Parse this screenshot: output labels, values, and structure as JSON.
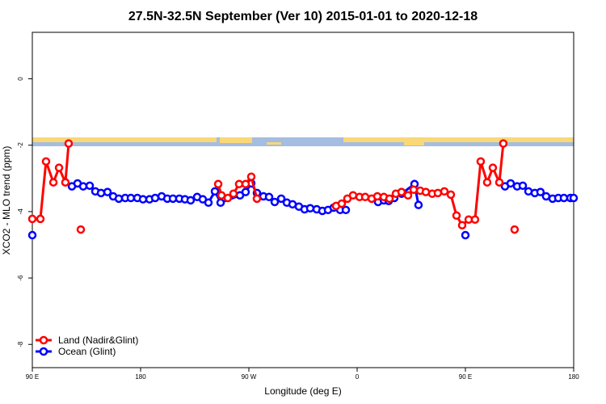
{
  "chart_data": {
    "type": "line",
    "title": "27.5N-32.5N September (Ver 10)   2015-01-01 to 2020-12-18",
    "x_label": "Longitude (deg E)",
    "y_label": "XCO2 - MLO trend (ppm)",
    "xlim": [
      90,
      540
    ],
    "xticks": [
      {
        "value": 90,
        "label": "90 E"
      },
      180,
      {
        "value": 270,
        "label": "90 W"
      },
      {
        "value": 360,
        "label": "0"
      },
      {
        "value": 450,
        "label": "90 E"
      },
      {
        "value": 540,
        "label": "180"
      }
    ],
    "ylim": [
      -8.7,
      1.4
    ],
    "yticks": [
      0,
      -2,
      -4,
      -6,
      -8
    ],
    "legend": "bottomleft",
    "series": [
      {
        "name": "Land (Nadir&Glint)",
        "color": "#ff0000",
        "x": [
          90,
          96.7,
          101.4,
          107.5,
          112.2,
          117.5,
          120.2,
          null,
          130.3,
          null,
          244.5,
          247.2,
          252.5,
          257.2,
          261.9,
          267.3,
          272,
          276.7,
          null,
          342.5,
          347.2,
          351.9,
          356.6,
          362,
          366.7,
          372.1,
          376.8,
          382.2,
          386.9,
          392.2,
          396.9,
          402.3,
          407,
          412.4,
          417.1,
          422.4,
          427.1,
          432.5,
          437.9,
          442.6,
          447.3,
          452.7,
          458,
          462.7,
          468.1,
          472.8,
          478.2,
          481.5,
          null,
          490.9
        ],
        "values": [
          -4.22,
          -4.22,
          -2.49,
          -3.12,
          -2.68,
          -3.12,
          -1.95,
          null,
          -4.54,
          null,
          -3.17,
          -3.51,
          -3.59,
          -3.46,
          -3.17,
          -3.17,
          -2.95,
          -3.61,
          null,
          -3.83,
          -3.76,
          -3.61,
          -3.51,
          -3.56,
          -3.56,
          -3.61,
          -3.54,
          -3.56,
          -3.61,
          -3.46,
          -3.41,
          -3.51,
          -3.34,
          -3.37,
          -3.41,
          -3.46,
          -3.44,
          -3.39,
          -3.49,
          -4.12,
          -4.41,
          -4.24,
          -4.24,
          -2.49,
          -3.12,
          -2.68,
          -3.12,
          -1.95,
          null,
          -4.54
        ]
      },
      {
        "name": "Ocean (Glint)",
        "color": "#0000ff",
        "x": [
          90,
          null,
          122.9,
          127.6,
          132.3,
          137.7,
          142.4,
          147.1,
          152.5,
          157.2,
          161.9,
          167.2,
          171.9,
          177.3,
          182,
          187.4,
          192.1,
          197.5,
          202.2,
          206.9,
          212.2,
          216.9,
          221.6,
          227,
          231.7,
          236.4,
          241.8,
          246.5,
          262.6,
          267.3,
          272,
          276.7,
          282.1,
          286.8,
          291.5,
          296.9,
          301.6,
          306.3,
          311.6,
          316.3,
          321,
          326.4,
          331.1,
          335.8,
          340.5,
          345.9,
          350.6,
          null,
          377.4,
          382.2,
          386.2,
          390.9,
          396.9,
          407.7,
          411,
          null,
          450,
          null,
          482.9,
          487.6,
          493,
          497.7,
          502.4,
          507.7,
          512.4,
          517.1,
          522.5,
          527.2,
          531.9,
          537.3,
          540
        ],
        "values": [
          -4.71,
          null,
          -3.24,
          -3.15,
          -3.24,
          -3.22,
          -3.39,
          -3.44,
          -3.41,
          -3.54,
          -3.61,
          -3.59,
          -3.59,
          -3.59,
          -3.63,
          -3.63,
          -3.59,
          -3.54,
          -3.61,
          -3.61,
          -3.61,
          -3.63,
          -3.66,
          -3.56,
          -3.63,
          -3.73,
          -3.39,
          -3.73,
          -3.51,
          -3.41,
          -3.15,
          -3.44,
          -3.54,
          -3.56,
          -3.71,
          -3.61,
          -3.73,
          -3.78,
          -3.85,
          -3.93,
          -3.9,
          -3.93,
          -3.98,
          -3.95,
          -3.88,
          -3.95,
          -3.95,
          null,
          -3.71,
          -3.66,
          -3.68,
          -3.59,
          -3.46,
          -3.17,
          -3.8,
          null,
          -4.71,
          null,
          -3.24,
          -3.15,
          -3.24,
          -3.22,
          -3.39,
          -3.44,
          -3.41,
          -3.54,
          -3.61,
          -3.59,
          -3.59,
          -3.59,
          -3.59
        ]
      }
    ]
  }
}
